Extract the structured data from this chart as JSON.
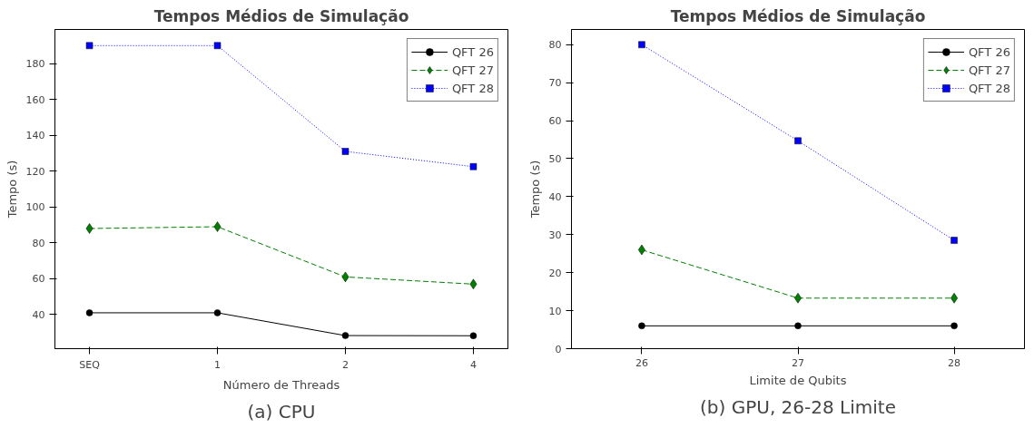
{
  "chart_data": [
    {
      "type": "line",
      "title": "Tempos Médios de Simulação",
      "xlabel": "Número de Threads",
      "ylabel": "Tempo (s)",
      "categories": [
        "SEQ",
        "1",
        "2",
        "4"
      ],
      "ylim": [
        21,
        199
      ],
      "yticks": [
        40,
        60,
        80,
        100,
        120,
        140,
        160,
        180
      ],
      "grid": false,
      "legend": "right",
      "annotations": [
        "(a) CPU"
      ],
      "series": [
        {
          "name": "QFT 26",
          "color": "#000000",
          "marker": "circle",
          "line_style": "solid",
          "values": [
            41,
            41,
            28.3,
            28.2
          ]
        },
        {
          "name": "QFT 27",
          "color": "#007f00",
          "marker": "diamond",
          "line_style": "dashed",
          "values": [
            88,
            89,
            61,
            57
          ]
        },
        {
          "name": "QFT 28",
          "color": "#0000ff",
          "marker": "square",
          "line_style": "dotted",
          "values": [
            190,
            190,
            131,
            122.5
          ]
        }
      ]
    },
    {
      "type": "line",
      "title": "Tempos Médios de Simulação",
      "xlabel": "Limite de Qubits",
      "ylabel": "Tempo (s)",
      "x": [
        26,
        27,
        28
      ],
      "xlim": [
        25.55,
        28.45
      ],
      "xticks": [
        26,
        27,
        28
      ],
      "ylim": [
        0,
        84
      ],
      "yticks": [
        0,
        10,
        20,
        30,
        40,
        50,
        60,
        70,
        80
      ],
      "grid": false,
      "legend": "right",
      "annotations": [
        "(b) GPU, 26-28 Limite"
      ],
      "series": [
        {
          "name": "QFT 26",
          "color": "#000000",
          "marker": "circle",
          "line_style": "solid",
          "values": [
            6,
            6,
            6
          ]
        },
        {
          "name": "QFT 27",
          "color": "#007f00",
          "marker": "diamond",
          "line_style": "dashed",
          "values": [
            26,
            13.3,
            13.3
          ]
        },
        {
          "name": "QFT 28",
          "color": "#0000ff",
          "marker": "square",
          "line_style": "dotted",
          "values": [
            80,
            54.7,
            28.5
          ]
        }
      ]
    }
  ]
}
